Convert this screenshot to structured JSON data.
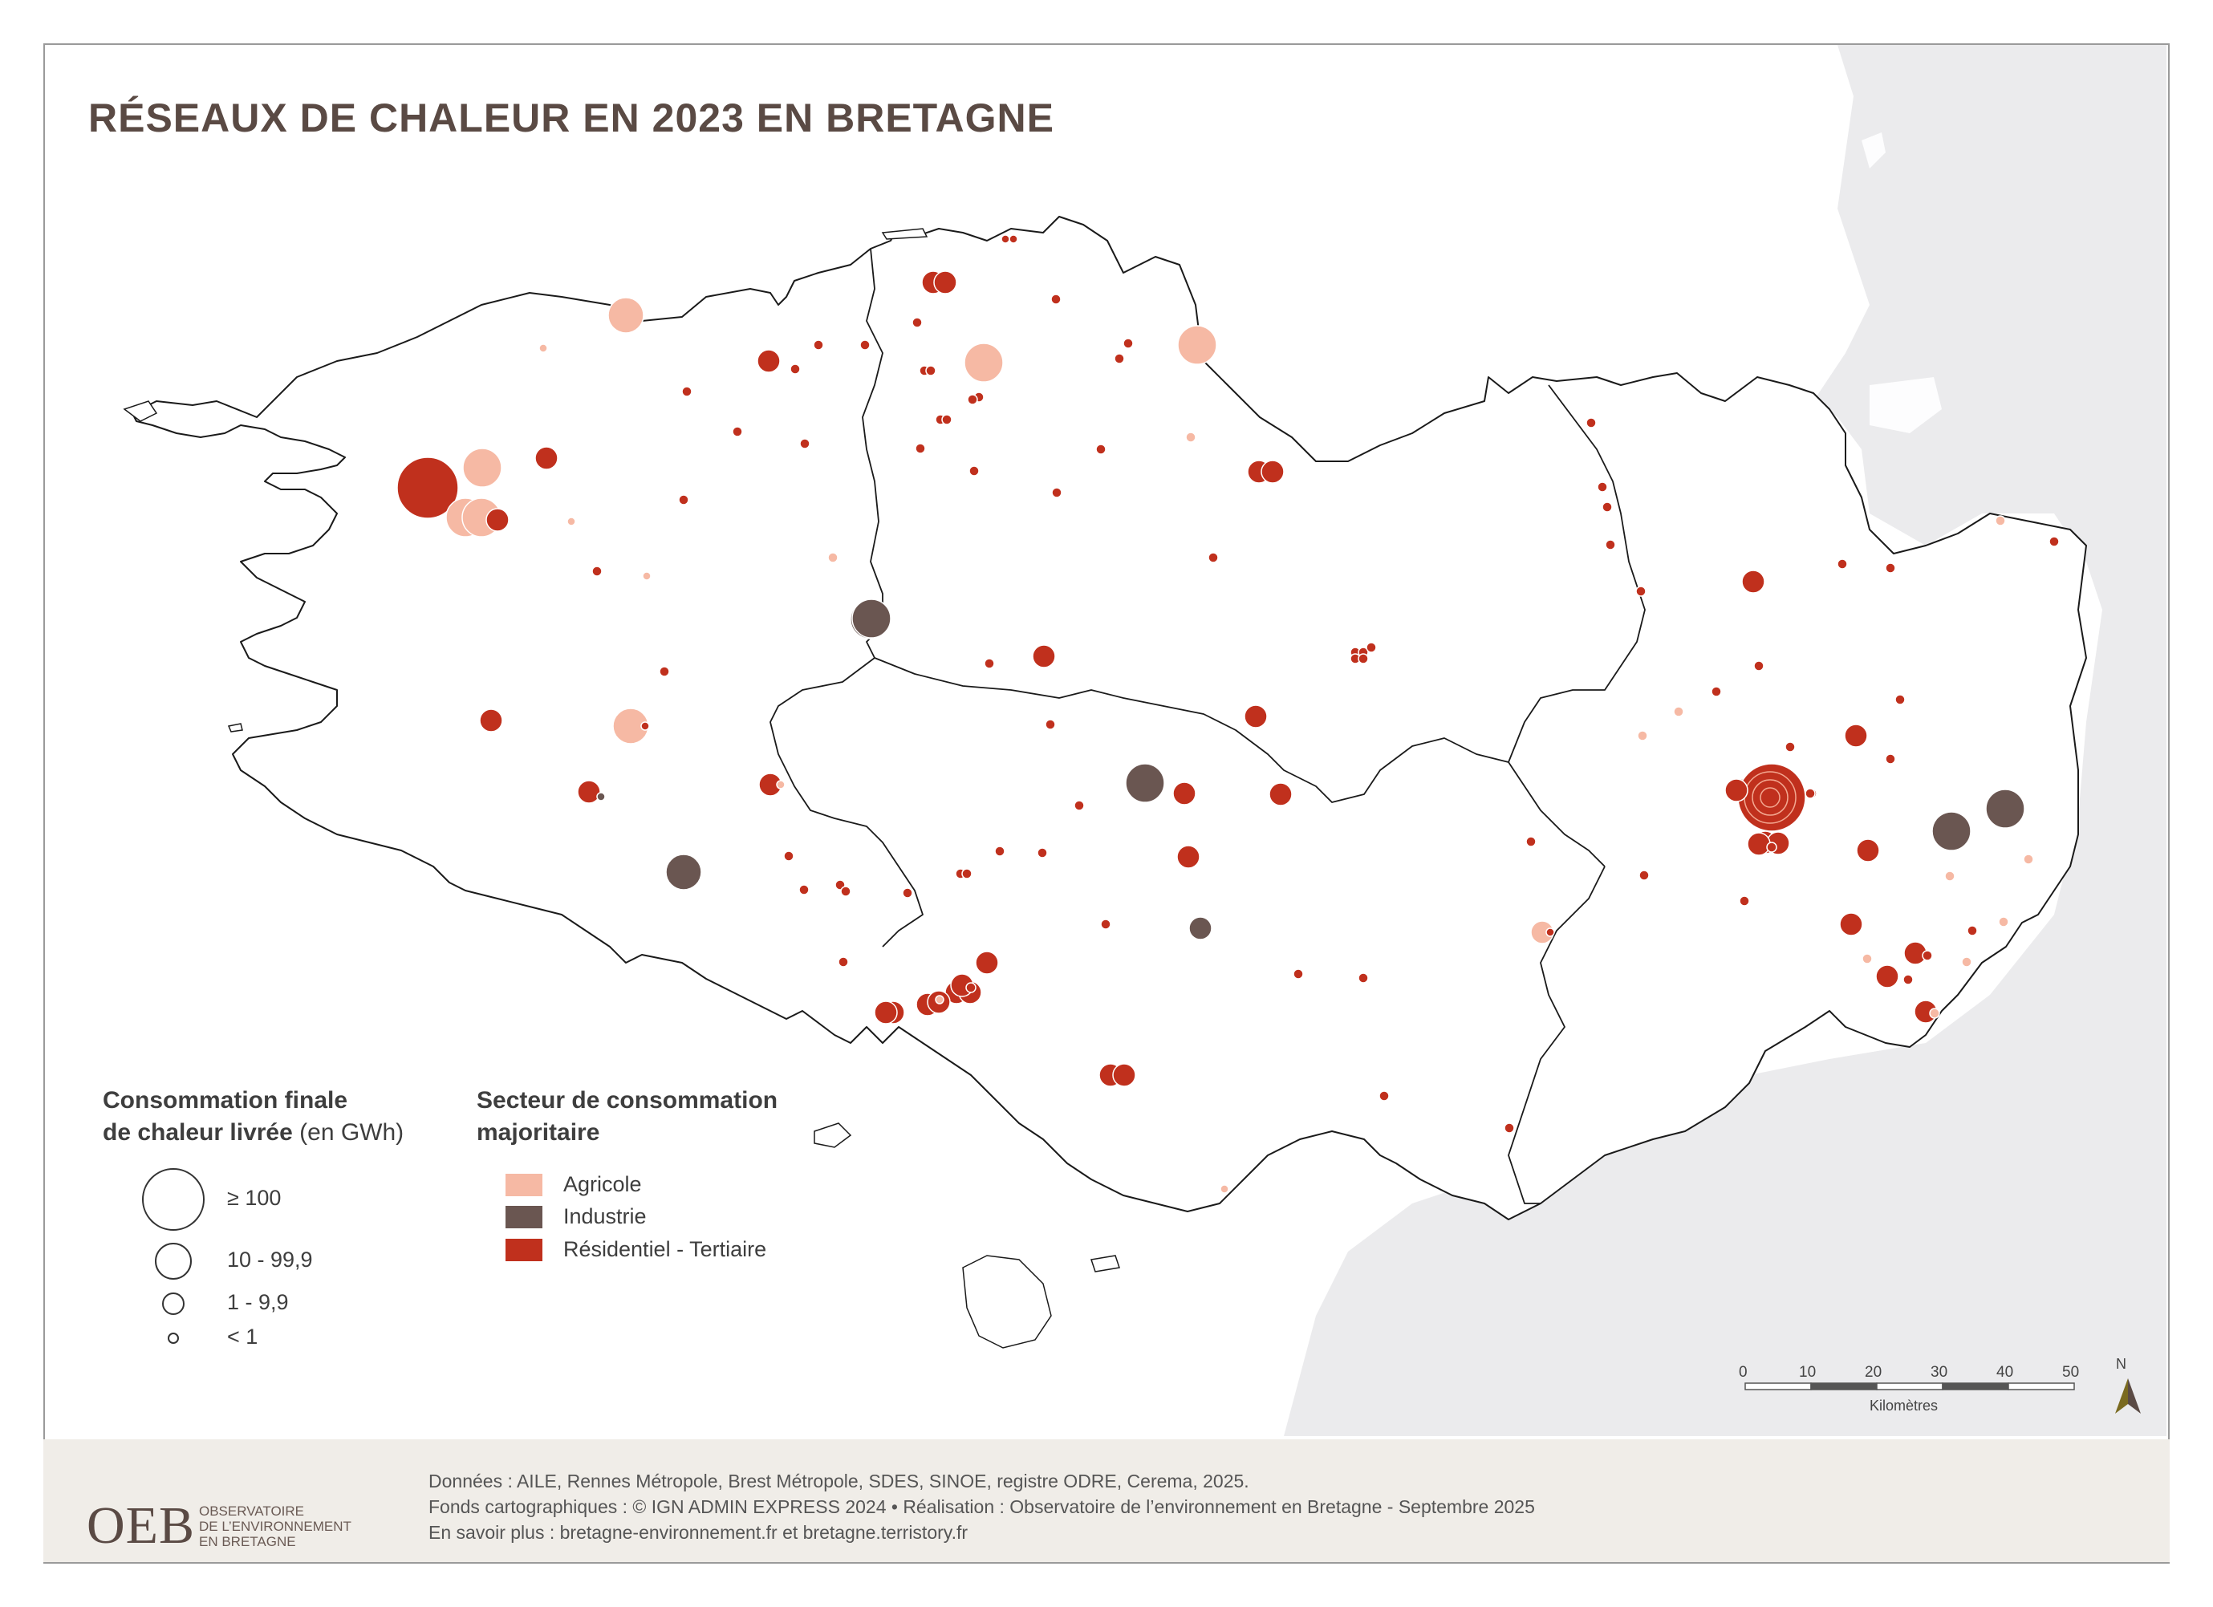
{
  "title": "RÉSEAUX DE CHALEUR EN 2023 EN BRETAGNE",
  "colors": {
    "agricole": "#f6b9a4",
    "industrie": "#6a5651",
    "residentiel": "#c0301d",
    "sea": "#ebebed",
    "footer": "#f0ede8"
  },
  "size_legend": {
    "title_line1": "Consommation finale",
    "title_line2": "de chaleur livrée",
    "title_unit": "(en GWh)",
    "classes": [
      {
        "label": "≥ 100",
        "size_class": 4
      },
      {
        "label": "10 - 99,9",
        "size_class": 3
      },
      {
        "label": "1 - 9,9",
        "size_class": 2
      },
      {
        "label": "< 1",
        "size_class": 1
      }
    ]
  },
  "sector_legend": {
    "title_line1": "Secteur de consommation",
    "title_line2": "majoritaire",
    "items": [
      {
        "label": "Agricole",
        "sector": "agricole"
      },
      {
        "label": "Industrie",
        "sector": "industrie"
      },
      {
        "label": "Résidentiel - Tertiaire",
        "sector": "residentiel"
      }
    ]
  },
  "scale_bar": {
    "ticks": [
      "0",
      "10",
      "20",
      "30",
      "40",
      "50"
    ],
    "unit": "Kilomètres"
  },
  "north": "N",
  "footer": {
    "line1": "Données : AILE, Rennes Métropole, Brest Métropole, SDES, SINOE, registre ODRE, Cerema, 2025.",
    "line2": "Fonds cartographiques : © IGN ADMIN EXPRESS 2024 • Réalisation : Observatoire de l’environnement en Bretagne - Septembre 2025",
    "line3": "En savoir plus : bretagne-environnement.fr et bretagne.terristory.fr"
  },
  "logo": {
    "acronym": "OEB",
    "line1": "OBSERVATOIRE",
    "line2": "DE L’ENVIRONNEMENT",
    "line3": "EN BRETAGNE"
  }
}
